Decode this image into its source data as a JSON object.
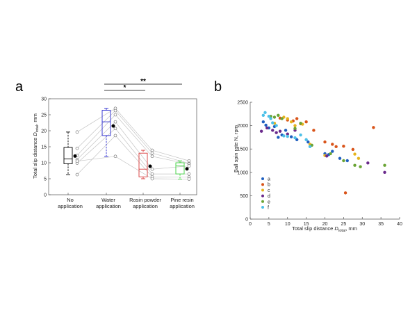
{
  "chart_data": [
    {
      "panel_label": "a",
      "type": "box",
      "ylabel_main": "Total slip distance ",
      "ylabel_sym": "D",
      "ylabel_sub": "total",
      "ylabel_unit": ", mm",
      "ylim": [
        0,
        30
      ],
      "yticks": [
        0,
        5,
        10,
        15,
        20,
        25,
        30
      ],
      "categories": [
        {
          "line1": "No",
          "line2": "application"
        },
        {
          "line1": "Water",
          "line2": "application"
        },
        {
          "line1": "Rosin powder",
          "line2": "application"
        },
        {
          "line1": "Pine resin",
          "line2": "application"
        }
      ],
      "box_colors": [
        "#000000",
        "#2a2ad0",
        "#d83838",
        "#3cd23c"
      ],
      "boxes": [
        {
          "whisker_low": 6.3,
          "q1": 9.7,
          "median": 11.2,
          "q3": 14.8,
          "whisker_high": 19.6,
          "mean": 12.1
        },
        {
          "whisker_low": 12.0,
          "q1": 18.5,
          "median": 22.8,
          "q3": 26.4,
          "whisker_high": 27.0,
          "mean": 21.5
        },
        {
          "whisker_low": 5.0,
          "q1": 5.6,
          "median": 8.0,
          "q3": 13.0,
          "whisker_high": 13.9,
          "mean": 8.9
        },
        {
          "whisker_low": 4.9,
          "q1": 6.5,
          "median": 9.0,
          "q3": 10.0,
          "whisker_high": 10.6,
          "mean": 8.1
        }
      ],
      "subjects": [
        [
          19.6,
          27.0,
          13.9,
          10.6
        ],
        [
          14.5,
          26.3,
          13.0,
          9.8
        ],
        [
          12.3,
          25.0,
          12.0,
          9.6
        ],
        [
          11.0,
          22.8,
          8.0,
          9.0
        ],
        [
          9.9,
          20.7,
          6.5,
          6.5
        ],
        [
          6.3,
          18.5,
          5.6,
          5.5
        ],
        [
          10.5,
          12.0,
          5.0,
          4.9
        ]
      ],
      "significance": [
        {
          "label": "*",
          "from": 1,
          "to": 2
        },
        {
          "label": "**",
          "from": 1,
          "to": 3
        }
      ]
    },
    {
      "panel_label": "b",
      "type": "scatter",
      "xlabel_main": "Total slip distance ",
      "xlabel_sym": "D",
      "xlabel_sub": "total",
      "xlabel_unit": ", mm",
      "ylabel": "Ball spin rate N, rpm",
      "xlim": [
        0,
        40
      ],
      "ylim": [
        0,
        2500
      ],
      "xticks": [
        0,
        5,
        10,
        15,
        20,
        25,
        30,
        35,
        40
      ],
      "yticks": [
        0,
        500,
        1000,
        1500,
        2000,
        2500
      ],
      "legend_position": "bottom-left",
      "series": [
        {
          "name": "a",
          "color": "#1f5fbf",
          "points": [
            [
              3.5,
              2080
            ],
            [
              4.2,
              2010
            ],
            [
              5.0,
              1950
            ],
            [
              6.5,
              1980
            ],
            [
              7.5,
              1750
            ],
            [
              8.5,
              1800
            ],
            [
              9.5,
              1900
            ],
            [
              11,
              1760
            ],
            [
              12.5,
              1700
            ],
            [
              15.5,
              1650
            ],
            [
              20,
              1400
            ],
            [
              21,
              1380
            ],
            [
              22,
              1450
            ],
            [
              24,
              1300
            ],
            [
              26,
              1250
            ]
          ]
        },
        {
          "name": "b",
          "color": "#d9541a",
          "points": [
            [
              8,
              2160
            ],
            [
              10,
              2120
            ],
            [
              11.5,
              2100
            ],
            [
              12.5,
              2150
            ],
            [
              13.5,
              2040
            ],
            [
              15,
              2080
            ],
            [
              17,
              1900
            ],
            [
              20,
              1650
            ],
            [
              22,
              1600
            ],
            [
              23,
              1550
            ],
            [
              25,
              1560
            ],
            [
              25.5,
              560
            ],
            [
              27.5,
              1490
            ],
            [
              33,
              1960
            ]
          ]
        },
        {
          "name": "c",
          "color": "#e6b41e",
          "points": [
            [
              6.5,
              2050
            ],
            [
              9,
              2180
            ],
            [
              10,
              2150
            ],
            [
              11,
              2080
            ],
            [
              12,
              2000
            ],
            [
              14,
              2030
            ],
            [
              16,
              1600
            ],
            [
              20,
              1360
            ],
            [
              28,
              1390
            ],
            [
              29,
              1300
            ]
          ]
        },
        {
          "name": "d",
          "color": "#6a2a8c",
          "points": [
            [
              3,
              1880
            ],
            [
              4.5,
              1950
            ],
            [
              6,
              1900
            ],
            [
              7,
              1850
            ],
            [
              8,
              1880
            ],
            [
              10,
              1820
            ],
            [
              12,
              1900
            ],
            [
              20.5,
              1350
            ],
            [
              31.5,
              1200
            ],
            [
              36,
              1000
            ]
          ]
        },
        {
          "name": "e",
          "color": "#6aa434",
          "points": [
            [
              5.5,
              2200
            ],
            [
              6.5,
              2180
            ],
            [
              7.5,
              2220
            ],
            [
              8.5,
              2150
            ],
            [
              12,
              1940
            ],
            [
              13.5,
              2050
            ],
            [
              16.5,
              1580
            ],
            [
              21.5,
              1400
            ],
            [
              25,
              1250
            ],
            [
              28,
              1150
            ],
            [
              29.5,
              1120
            ],
            [
              36,
              1150
            ]
          ]
        },
        {
          "name": "f",
          "color": "#4cc0e8",
          "points": [
            [
              3.5,
              2220
            ],
            [
              4,
              2280
            ],
            [
              5,
              2200
            ],
            [
              5.5,
              2150
            ],
            [
              6,
              2060
            ],
            [
              7,
              2000
            ],
            [
              9,
              1780
            ],
            [
              10,
              1770
            ],
            [
              12,
              1740
            ],
            [
              13.5,
              1800
            ],
            [
              15,
              1700
            ],
            [
              16,
              1550
            ]
          ]
        }
      ]
    }
  ]
}
